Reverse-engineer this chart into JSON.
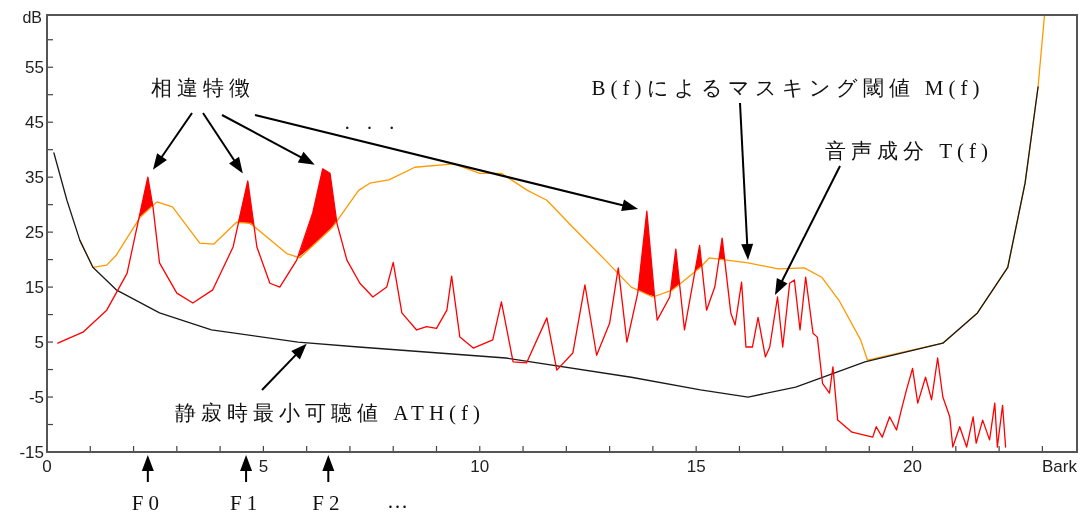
{
  "chart_data": {
    "type": "line",
    "xlabel": "Bark",
    "ylabel": "dB",
    "xlim": [
      0,
      23.8
    ],
    "ylim": [
      -15,
      64.5
    ],
    "xticks": [
      0,
      {
        "value": 1,
        "label": null
      },
      {
        "value": 2,
        "label": null
      },
      {
        "value": 3,
        "label": null
      },
      {
        "value": 4,
        "label": null
      },
      5,
      {
        "value": 6,
        "label": null
      },
      {
        "value": 7,
        "label": null
      },
      {
        "value": 8,
        "label": null
      },
      {
        "value": 9,
        "label": null
      },
      10,
      {
        "value": 11,
        "label": null
      },
      {
        "value": 12,
        "label": null
      },
      {
        "value": 13,
        "label": null
      },
      {
        "value": 14,
        "label": null
      },
      15,
      {
        "value": 16,
        "label": null
      },
      {
        "value": 17,
        "label": null
      },
      {
        "value": 18,
        "label": null
      },
      {
        "value": 19,
        "label": null
      },
      20,
      {
        "value": 21,
        "label": null
      },
      {
        "value": 22,
        "label": null
      },
      {
        "value": 23,
        "label": null
      }
    ],
    "yticks": [
      -15,
      {
        "value": -10,
        "label": null
      },
      -5,
      {
        "value": 0,
        "label": null
      },
      5,
      {
        "value": 10,
        "label": null
      },
      15,
      {
        "value": 20,
        "label": null
      },
      25,
      {
        "value": 30,
        "label": null
      },
      35,
      {
        "value": 40,
        "label": null
      },
      45,
      {
        "value": 50,
        "label": null
      },
      55,
      {
        "value": 60,
        "label": null
      }
    ],
    "series": [
      {
        "color": "#ff9900",
        "x": [
          0.76,
          1.06,
          1.38,
          1.6,
          2.15,
          2.54,
          2.9,
          3.53,
          3.85,
          4.38,
          4.7,
          5.54,
          5.84,
          6.6,
          7.2,
          7.46,
          7.9,
          8.5,
          9.4,
          10.0,
          10.5,
          11.1,
          11.55,
          12.15,
          12.9,
          13.5,
          14.0,
          14.46,
          15.1,
          15.3,
          16.2,
          16.9,
          17.5,
          17.9,
          18.3,
          18.8,
          18.96,
          20.7,
          21.5,
          22.2,
          22.6,
          22.9,
          23.05
        ],
        "values": [
          23.5,
          18.6,
          19,
          20.8,
          27.7,
          30.5,
          29.6,
          23,
          22.8,
          26.8,
          26.6,
          21.1,
          20.3,
          25.9,
          32.6,
          33.9,
          34.5,
          36.8,
          37.4,
          35.7,
          35.7,
          32.6,
          30.8,
          25.9,
          19.9,
          15,
          13.2,
          14.5,
          18.6,
          20.3,
          19.4,
          18.3,
          18.5,
          16.8,
          12.6,
          5.4,
          1.7,
          4.8,
          10.3,
          18.6,
          33.9,
          51.4,
          64.5
        ]
      },
      {
        "color": "#1a1a1a",
        "x": [
          0.16,
          0.46,
          0.76,
          1.06,
          1.6,
          2.6,
          3.8,
          5.8,
          7.2,
          10.6,
          13.5,
          15.1,
          16.2,
          17.3,
          18.9,
          20.7,
          21.5,
          22.2,
          22.6,
          22.9
        ],
        "values": [
          39.4,
          30.8,
          23.5,
          18.6,
          14.5,
          10.3,
          7.2,
          5,
          4.1,
          2.1,
          -1.4,
          -3.7,
          -5,
          -3.2,
          1.4,
          4.8,
          10.3,
          18.6,
          33.9,
          51.4
        ]
      },
      {
        "color": "#ff0000",
        "x": [
          0.25,
          0.83,
          1.38,
          1.85,
          2.15,
          2.33,
          2.45,
          2.6,
          3.0,
          3.37,
          3.83,
          4.3,
          4.64,
          4.85,
          5.15,
          5.38,
          5.77,
          6.14,
          6.37,
          6.54,
          6.7,
          6.93,
          7.23,
          7.53,
          7.85,
          8.0,
          8.2,
          8.54,
          8.77,
          9.0,
          9.24,
          9.35,
          9.54,
          9.85,
          10.3,
          10.5,
          10.77,
          11.08,
          11.55,
          11.78,
          12.15,
          12.43,
          12.7,
          13.0,
          13.2,
          13.4,
          13.65,
          13.86,
          14.04,
          14.1,
          14.39,
          14.53,
          14.73,
          15.08,
          15.24,
          15.43,
          15.6,
          15.66,
          15.8,
          15.9,
          16.05,
          16.15,
          16.3,
          16.43,
          16.6,
          16.7,
          16.88,
          17.0,
          17.16,
          17.27,
          17.4,
          17.53,
          17.7,
          17.8,
          17.92,
          18.08,
          18.16,
          18.27,
          18.6,
          19.08,
          19.16,
          19.3,
          19.47,
          19.63,
          19.74,
          19.86,
          20.0,
          20.12,
          20.3,
          20.44,
          20.58,
          20.7,
          20.86,
          20.93,
          21.09,
          21.25,
          21.4,
          21.47,
          21.62,
          21.78,
          21.9,
          21.96,
          22.08,
          22.15
        ],
        "values": [
          4.8,
          6.8,
          10.8,
          17.5,
          28.5,
          35,
          29.5,
          19.4,
          13.9,
          12.1,
          14.5,
          22.3,
          34.3,
          22.3,
          15.7,
          15,
          19.9,
          28.5,
          36.5,
          35.7,
          26.6,
          19.9,
          15.7,
          13.2,
          15,
          19.5,
          10.3,
          7.2,
          7.8,
          7.5,
          10.8,
          17,
          5.9,
          3.9,
          5.4,
          12.3,
          1.4,
          1.2,
          9.4,
          -0.1,
          3,
          15.4,
          2.6,
          8.4,
          18.5,
          5,
          13.9,
          28.8,
          13.2,
          9,
          13.2,
          21.9,
          7.2,
          22.6,
          10.8,
          15,
          23.9,
          19.9,
          10.3,
          8.1,
          15.9,
          4.1,
          4.1,
          9.5,
          2.3,
          4.1,
          13.2,
          4.1,
          15.7,
          16.3,
          7.2,
          16.8,
          6.6,
          5.9,
          -2.5,
          -4.3,
          0.5,
          -9.2,
          -11.4,
          -12.3,
          -10.4,
          -12.3,
          -8.6,
          -11,
          -7.4,
          -3.7,
          0.2,
          -6.1,
          -1.4,
          -5.5,
          2.1,
          -5,
          -8.6,
          -14.1,
          -10.4,
          -14.1,
          -8.6,
          -13.4,
          -9.2,
          -12.8,
          -6.1,
          -14.1,
          -6.5,
          -14.1
        ]
      }
    ],
    "annotations": [
      "相違特徴",
      "· · ·",
      "B(f)によるマスキング閾値 M(f)",
      "音声成分 T(f)",
      {
        "text": "静寂時最小可聴値 ATH(f)",
        "x": 6.0,
        "y": 4.7
      },
      {
        "text": "F0",
        "x": 2.33
      },
      {
        "text": "F1",
        "x": 4.6
      },
      {
        "text": "F2",
        "x": 6.5
      },
      "…"
    ]
  }
}
